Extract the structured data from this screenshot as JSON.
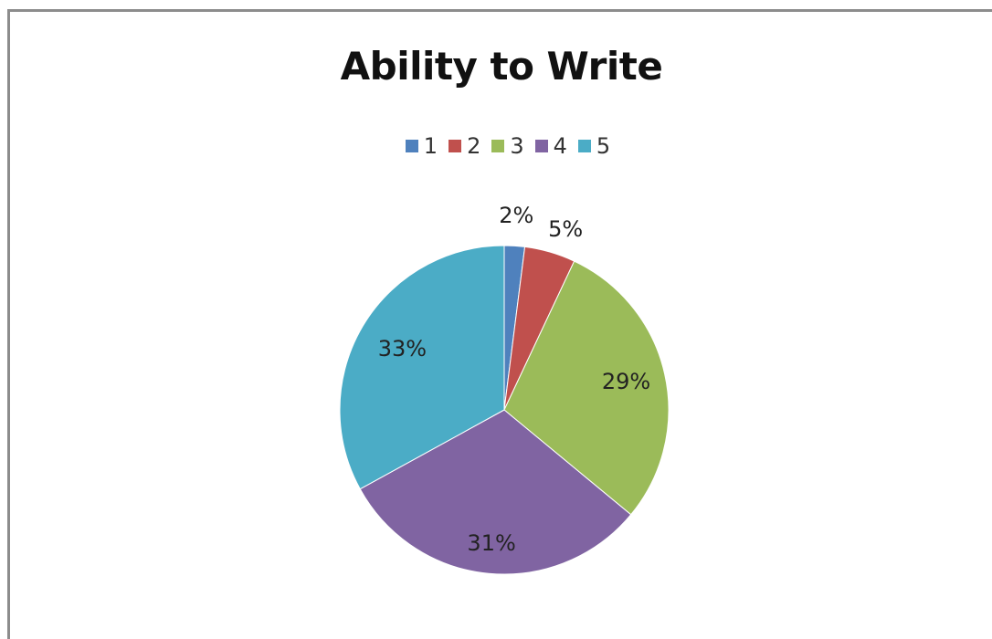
{
  "chart_data": {
    "type": "pie",
    "title": "Ability to Write",
    "categories": [
      "1",
      "2",
      "3",
      "4",
      "5"
    ],
    "values": [
      2,
      5,
      29,
      31,
      33
    ],
    "labels": [
      "2%",
      "5%",
      "29%",
      "31%",
      "33%"
    ],
    "colors": [
      "#4f81bd",
      "#c0504d",
      "#9bbb59",
      "#8064a2",
      "#4bacc6"
    ],
    "legend_position": "top"
  }
}
